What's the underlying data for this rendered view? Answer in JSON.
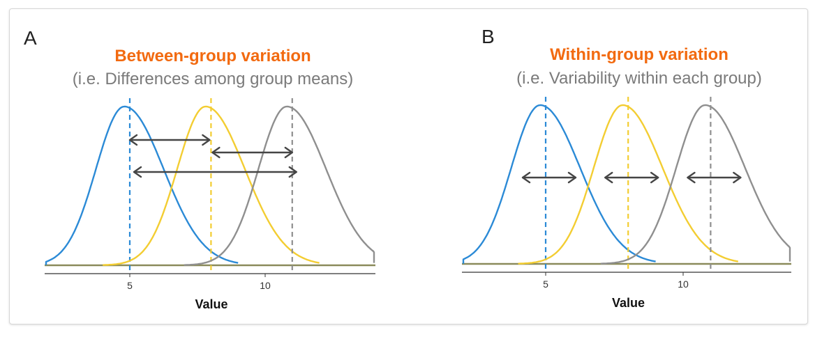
{
  "colors": {
    "blue": "#2b8ad6",
    "yellow": "#f3cd32",
    "gray": "#8f8f8f",
    "arrow": "#454545",
    "title": "#f26a10",
    "subtitle": "#7a7a7a",
    "baseline": "#8a8a5a"
  },
  "panels": [
    {
      "letter": "A",
      "title": "Between-group variation",
      "subtitle": "(i.e. Differences among group means)",
      "xlabel": "Value",
      "ticks": [
        {
          "value": 5,
          "label": "5"
        },
        {
          "value": 10,
          "label": "10"
        }
      ]
    },
    {
      "letter": "B",
      "title": "Within-group variation",
      "subtitle": "(i.e. Variability within each group)",
      "xlabel": "Value",
      "ticks": [
        {
          "value": 5,
          "label": "5"
        },
        {
          "value": 10,
          "label": "10"
        }
      ]
    }
  ],
  "groups": [
    {
      "mean": 5,
      "color_key": "blue"
    },
    {
      "mean": 8,
      "color_key": "yellow"
    },
    {
      "mean": 11,
      "color_key": "gray"
    }
  ]
}
